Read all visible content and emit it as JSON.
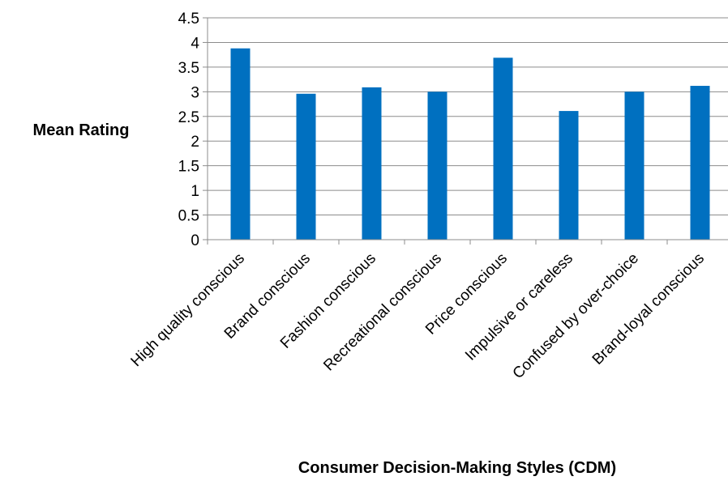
{
  "chart_data": {
    "type": "bar",
    "title": "",
    "xlabel": "Consumer Decision-Making Styles (CDM)",
    "ylabel": "Mean Rating",
    "ylim": [
      0,
      4.5
    ],
    "yticks": [
      "0",
      "0.5",
      "1",
      "1.5",
      "2",
      "2.5",
      "3",
      "3.5",
      "4",
      "4.5"
    ],
    "grid": true,
    "legend": "none",
    "bar_color": "#0070C0",
    "categories": [
      "High quality conscious",
      "Brand conscious",
      "Fashion conscious",
      "Recreational conscious",
      "Price conscious",
      "Impulsive or careless",
      "Confused by over-choice",
      "Brand-loyal conscious"
    ],
    "values": [
      3.88,
      2.96,
      3.09,
      3.0,
      3.69,
      2.61,
      3.0,
      3.12
    ]
  }
}
